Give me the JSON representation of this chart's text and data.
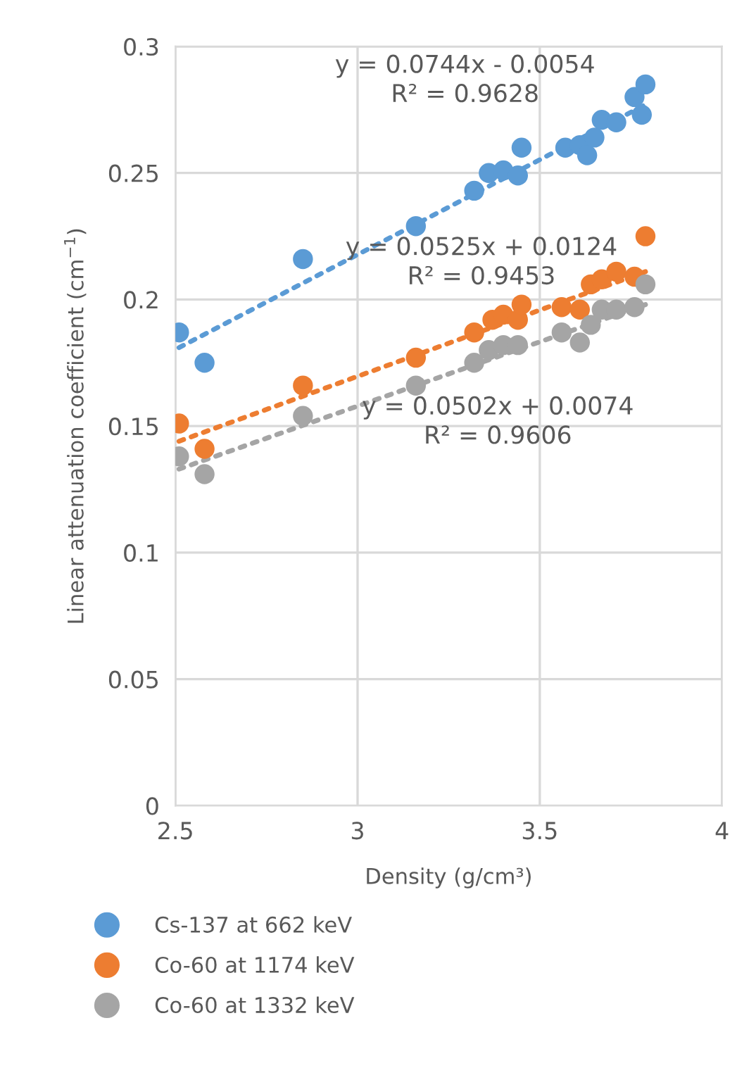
{
  "chart_data": {
    "type": "scatter",
    "xlabel": "Density (g/cm³)",
    "ylabel": "Linear attenuation coefficient (cm$^{−1}$)",
    "xlim": [
      2.5,
      4
    ],
    "xticks": [
      2.5,
      3,
      3.5,
      4
    ],
    "ylim": [
      0,
      0.3
    ],
    "yticks": [
      0,
      0.05,
      0.1,
      0.15,
      0.2,
      0.25,
      0.3
    ],
    "grid": true,
    "legend": "bottom",
    "marker": "circle",
    "series": [
      {
        "name": "Cs-137 at 662 keV",
        "color": "#5b9bd5",
        "x": [
          2.51,
          2.58,
          2.85,
          3.16,
          3.32,
          3.36,
          3.4,
          3.44,
          3.45,
          3.57,
          3.61,
          3.63,
          3.65,
          3.67,
          3.71,
          3.76,
          3.78,
          3.79
        ],
        "values": [
          0.187,
          0.175,
          0.216,
          0.229,
          0.243,
          0.25,
          0.251,
          0.249,
          0.26,
          0.26,
          0.261,
          0.257,
          0.264,
          0.271,
          0.27,
          0.28,
          0.273,
          0.285
        ]
      },
      {
        "name": "Co-60 at 1174 keV",
        "color": "#ed7d31",
        "x": [
          2.51,
          2.58,
          2.85,
          3.16,
          3.32,
          3.37,
          3.4,
          3.44,
          3.45,
          3.56,
          3.61,
          3.64,
          3.67,
          3.71,
          3.76,
          3.79
        ],
        "values": [
          0.151,
          0.141,
          0.166,
          0.177,
          0.187,
          0.192,
          0.194,
          0.192,
          0.198,
          0.197,
          0.196,
          0.206,
          0.208,
          0.211,
          0.209,
          0.225
        ]
      },
      {
        "name": "Co-60 at 1332 keV",
        "color": "#a5a5a5",
        "x": [
          2.51,
          2.58,
          2.85,
          3.16,
          3.32,
          3.36,
          3.4,
          3.44,
          3.56,
          3.61,
          3.64,
          3.67,
          3.71,
          3.76,
          3.79
        ],
        "values": [
          0.138,
          0.131,
          0.154,
          0.166,
          0.175,
          0.18,
          0.182,
          0.182,
          0.187,
          0.183,
          0.19,
          0.196,
          0.196,
          0.197,
          0.206
        ]
      },
      {
        "type": "line",
        "marker": "none",
        "line_style": "dotted",
        "color": "#5b9bd5",
        "x": [
          2.51,
          3.79
        ],
        "values": [
          0.181,
          0.277
        ]
      },
      {
        "type": "line",
        "marker": "none",
        "line_style": "dotted",
        "color": "#ed7d31",
        "x": [
          2.51,
          3.79
        ],
        "values": [
          0.144,
          0.211
        ]
      },
      {
        "type": "line",
        "marker": "none",
        "line_style": "dotted",
        "color": "#a5a5a5",
        "x": [
          2.51,
          3.79
        ],
        "values": [
          0.133,
          0.198
        ]
      }
    ],
    "annotations": [
      "y = 0.0744x - 0.0054\nR² = 0.9628",
      "y = 0.0525x + 0.0124\nR² = 0.9453",
      "y = 0.0502x + 0.0074\nR² = 0.9606"
    ]
  }
}
